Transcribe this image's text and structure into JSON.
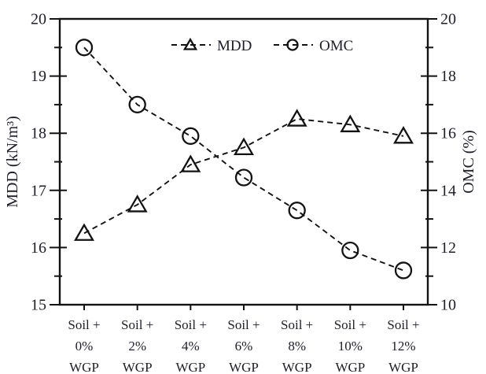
{
  "chart_data": {
    "type": "line",
    "title": "",
    "categories": [
      "Soil + 0% WGP",
      "Soil + 2% WGP",
      "Soil + 4% WGP",
      "Soil + 6% WGP",
      "Soil + 8% WGP",
      "Soil + 10% WGP",
      "Soil + 12% WGP"
    ],
    "series": [
      {
        "name": "MDD",
        "axis": "left",
        "marker": "triangle",
        "values": [
          16.25,
          16.75,
          17.45,
          17.75,
          18.25,
          18.15,
          17.95
        ]
      },
      {
        "name": "OMC",
        "axis": "right",
        "marker": "circle",
        "values": [
          19.0,
          17.0,
          15.9,
          14.45,
          13.3,
          11.9,
          11.2
        ]
      }
    ],
    "left_axis": {
      "label": "MDD (kN/m³)",
      "min": 15,
      "max": 20,
      "major_step": 1,
      "minor_step": 0.5,
      "tick_labels": [
        "15",
        "16",
        "17",
        "18",
        "19",
        "20"
      ]
    },
    "right_axis": {
      "label": "OMC (%)",
      "min": 10,
      "max": 20,
      "major_step": 2,
      "minor_step": 1,
      "tick_labels": [
        "10",
        "12",
        "14",
        "16",
        "18",
        "20"
      ]
    },
    "legend": {
      "position": "top-center",
      "entries": [
        "MDD",
        "OMC"
      ]
    },
    "style": {
      "line_style": "dashed",
      "grid": "off",
      "marker_fill": "none",
      "line_color": "#131313",
      "text_color": "#1d1d2b",
      "background": "#ffffff"
    }
  }
}
